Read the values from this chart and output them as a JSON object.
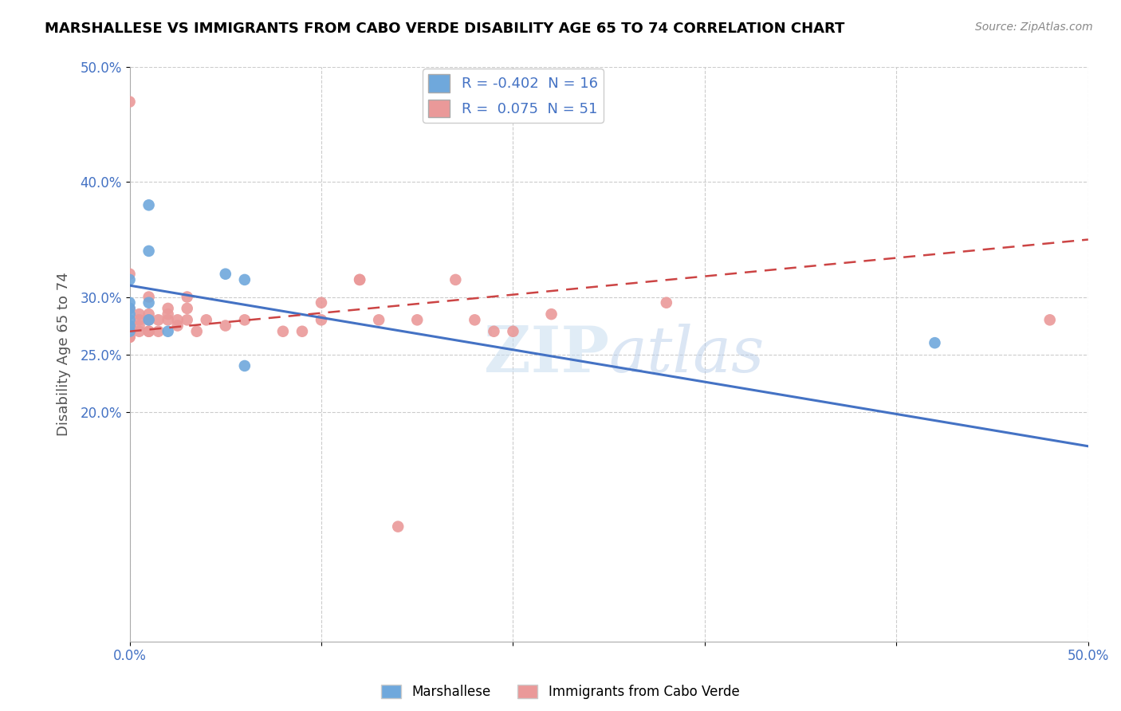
{
  "title": "MARSHALLESE VS IMMIGRANTS FROM CABO VERDE DISABILITY AGE 65 TO 74 CORRELATION CHART",
  "source": "Source: ZipAtlas.com",
  "ylabel": "Disability Age 65 to 74",
  "xlabel": "",
  "xlim": [
    0.0,
    50.0
  ],
  "ylim": [
    0.0,
    50.0
  ],
  "xtick_positions": [
    0.0,
    10.0,
    20.0,
    30.0,
    40.0,
    50.0
  ],
  "xtick_labels": [
    "0.0%",
    "",
    "",
    "",
    "",
    "50.0%"
  ],
  "ytick_positions": [
    20.0,
    25.0,
    30.0,
    40.0,
    50.0
  ],
  "ytick_labels": [
    "20.0%",
    "25.0%",
    "30.0%",
    "40.0%",
    "50.0%"
  ],
  "blue_R": -0.402,
  "blue_N": 16,
  "pink_R": 0.075,
  "pink_N": 51,
  "blue_color": "#6fa8dc",
  "pink_color": "#ea9999",
  "blue_line_color": "#4472c4",
  "pink_line_color": "#cc4444",
  "watermark": "ZIPatlas",
  "blue_line_x": [
    0.0,
    50.0
  ],
  "blue_line_y": [
    31.0,
    17.0
  ],
  "pink_line_x": [
    0.0,
    50.0
  ],
  "pink_line_y": [
    27.0,
    35.0
  ],
  "blue_points_x": [
    0.0,
    0.0,
    0.0,
    0.0,
    0.0,
    0.0,
    0.0,
    1.0,
    1.0,
    1.0,
    1.0,
    2.0,
    5.0,
    6.0,
    6.0,
    42.0
  ],
  "blue_points_y": [
    27.0,
    27.5,
    28.0,
    28.5,
    29.0,
    29.5,
    31.5,
    28.0,
    29.5,
    34.0,
    38.0,
    27.0,
    32.0,
    31.5,
    24.0,
    26.0
  ],
  "pink_points_x": [
    0.0,
    0.0,
    0.0,
    0.0,
    0.0,
    0.0,
    0.0,
    0.0,
    0.0,
    0.0,
    0.0,
    0.0,
    0.5,
    0.5,
    0.5,
    0.5,
    1.0,
    1.0,
    1.0,
    1.0,
    1.0,
    1.5,
    1.5,
    2.0,
    2.0,
    2.0,
    2.5,
    2.5,
    3.0,
    3.0,
    3.0,
    3.5,
    4.0,
    5.0,
    6.0,
    8.0,
    9.0,
    10.0,
    10.0,
    12.0,
    12.0,
    13.0,
    14.0,
    15.0,
    17.0,
    18.0,
    19.0,
    20.0,
    22.0,
    28.0,
    48.0
  ],
  "pink_points_y": [
    47.0,
    32.0,
    29.0,
    27.0,
    27.0,
    27.5,
    27.0,
    26.5,
    26.5,
    27.0,
    27.5,
    27.0,
    28.5,
    28.0,
    27.5,
    27.0,
    30.0,
    28.5,
    28.0,
    27.0,
    27.0,
    27.0,
    28.0,
    28.5,
    29.0,
    28.0,
    28.0,
    27.5,
    30.0,
    29.0,
    28.0,
    27.0,
    28.0,
    27.5,
    28.0,
    27.0,
    27.0,
    28.0,
    29.5,
    31.5,
    31.5,
    28.0,
    10.0,
    28.0,
    31.5,
    28.0,
    27.0,
    27.0,
    28.5,
    29.5,
    28.0
  ]
}
